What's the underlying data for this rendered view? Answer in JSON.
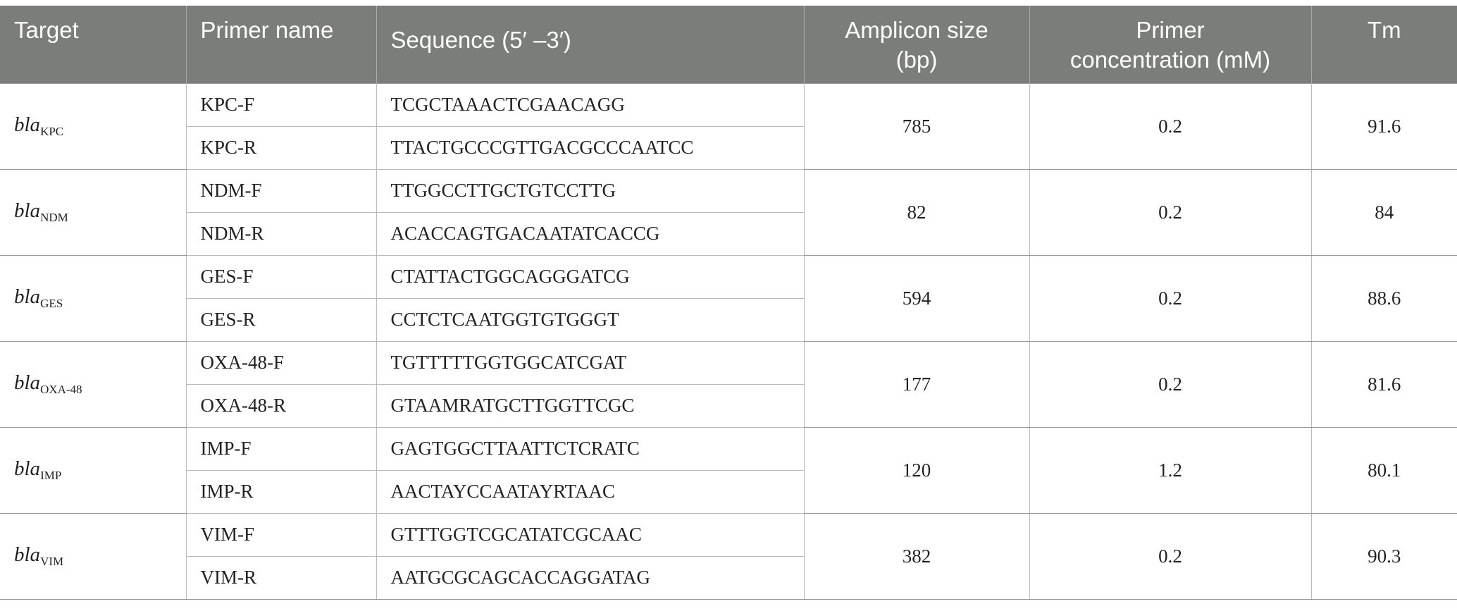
{
  "table": {
    "headers": {
      "target": "Target",
      "primer_name": "Primer name",
      "sequence": "Sequence (5′ –3′)",
      "amplicon_line1": "Amplicon size",
      "amplicon_line2": "(bp)",
      "concentration_line1": "Primer",
      "concentration_line2": "concentration (mM)",
      "tm": "Tm"
    },
    "rows": [
      {
        "target_prefix": "bla",
        "target_sub": "KPC",
        "primers": [
          {
            "name": "KPC-F",
            "sequence": "TCGCTAAACTCGAACAGG"
          },
          {
            "name": "KPC-R",
            "sequence": "TTACTGCCCGTTGACGCCCAATCC"
          }
        ],
        "amplicon": "785",
        "concentration": "0.2",
        "tm": "91.6"
      },
      {
        "target_prefix": "bla",
        "target_sub": "NDM",
        "primers": [
          {
            "name": "NDM-F",
            "sequence": "TTGGCCTTGCTGTCCTTG"
          },
          {
            "name": "NDM-R",
            "sequence": "ACACCAGTGACAATATCACCG"
          }
        ],
        "amplicon": "82",
        "concentration": "0.2",
        "tm": "84"
      },
      {
        "target_prefix": "bla",
        "target_sub": "GES",
        "primers": [
          {
            "name": "GES-F",
            "sequence": "CTATTACTGGCAGGGATCG"
          },
          {
            "name": "GES-R",
            "sequence": "CCTCTCAATGGTGTGGGT"
          }
        ],
        "amplicon": "594",
        "concentration": "0.2",
        "tm": "88.6"
      },
      {
        "target_prefix": "bla",
        "target_sub": "OXA-48",
        "primers": [
          {
            "name": "OXA-48-F",
            "sequence": "TGTTTTTGGTGGCATCGAT"
          },
          {
            "name": "OXA-48-R",
            "sequence": "GTAAMRATGCTTGGTTCGC"
          }
        ],
        "amplicon": "177",
        "concentration": "0.2",
        "tm": "81.6"
      },
      {
        "target_prefix": "bla",
        "target_sub": "IMP",
        "primers": [
          {
            "name": "IMP-F",
            "sequence": "GAGTGGCTTAATTCTCRATC"
          },
          {
            "name": "IMP-R",
            "sequence": "AACTAYCCAATAYRTAAC"
          }
        ],
        "amplicon": "120",
        "concentration": "1.2",
        "tm": "80.1"
      },
      {
        "target_prefix": "bla",
        "target_sub": "VIM",
        "primers": [
          {
            "name": "VIM-F",
            "sequence": "GTTTGGTCGCATATCGCAAC"
          },
          {
            "name": "VIM-R",
            "sequence": "AATGCGCAGCACCAGGATAG"
          }
        ],
        "amplicon": "382",
        "concentration": "0.2",
        "tm": "90.3"
      }
    ]
  }
}
